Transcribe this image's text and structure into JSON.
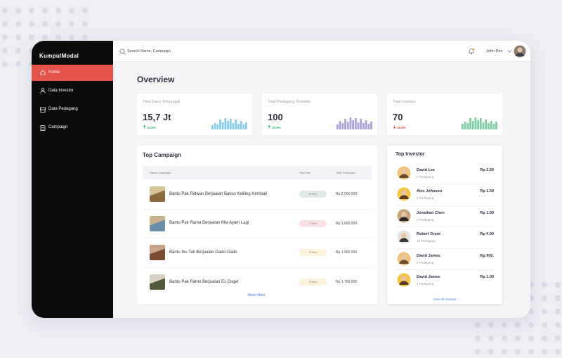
{
  "sidebar": {
    "brand": "KumpulModal",
    "menu": [
      "Home",
      "Data Investor",
      "Data Pedagang",
      "Campaign"
    ],
    "active": 0
  },
  "topbar": {
    "search_placeholder": "Search Name, Campaign",
    "user": "John Doe"
  },
  "overview": {
    "title": "Overview",
    "stats": [
      {
        "label": "Total Dana Terkumpul",
        "value": "15,7 Jt",
        "change": "15.8%",
        "direction": "up",
        "color": "#86ccec",
        "trend": [
          6,
          9,
          7,
          14,
          10,
          16,
          12,
          15,
          9,
          14,
          8,
          12,
          7,
          10
        ]
      },
      {
        "label": "Total Pedagang Terdaftar",
        "value": "100",
        "change": "15.8%",
        "direction": "up",
        "color": "#aaa4da",
        "trend": [
          7,
          12,
          9,
          15,
          11,
          17,
          13,
          16,
          10,
          15,
          9,
          13,
          8,
          11
        ]
      },
      {
        "label": "Total Investor",
        "value": "70",
        "change": "15.8%",
        "direction": "down",
        "color": "#7fcfa6",
        "trend": [
          8,
          11,
          9,
          16,
          12,
          17,
          13,
          16,
          10,
          14,
          9,
          12,
          8,
          11
        ]
      }
    ]
  },
  "top_campaign": {
    "title": "Top Campaign",
    "columns": [
      "Nama Campaign",
      "Sisa Hari",
      "Total Terkumpul"
    ],
    "rows": [
      {
        "name": "Bantu Pak Ridwan Berjualan Bakso Keliling Kembali",
        "days": "6 Hari",
        "badge_color": "#dfe9e6",
        "total": "Rp 2.000.000"
      },
      {
        "name": "Bantu Pak Rama Berjualan Mie Ayam Lagi",
        "days": "2 Hari",
        "badge_color": "#fbe0e4",
        "total": "Rp 1.600.000"
      },
      {
        "name": "Bantu Ibu Tati Berjualan Gado-Gado",
        "days": "5 Hari",
        "badge_color": "#fcf1d9",
        "total": "Rp 1.900.000"
      },
      {
        "name": "Bantu Pak Ratno Berjualan Es Doger",
        "days": "5 Hari",
        "badge_color": "#fcf1d9",
        "total": "Rp 1.700.000"
      }
    ],
    "more": "Show More"
  },
  "top_investor": {
    "title": "Top Investor",
    "rows": [
      {
        "name": "David Lee",
        "count": "5 Pedagang",
        "amount": "Rp 2.50"
      },
      {
        "name": "Alex Johnson",
        "count": "3 Pedagang",
        "amount": "Rp 1.50"
      },
      {
        "name": "Jonathan Chen",
        "count": "2 Pedagang",
        "amount": "Rp 1.00"
      },
      {
        "name": "Robert Grant",
        "count": "10 Pedagang",
        "amount": "Rp 4.00"
      },
      {
        "name": "David James",
        "count": "1 Pedagang",
        "amount": "Rp 900."
      },
      {
        "name": "David James",
        "count": "4 Pedagang",
        "amount": "Rp 1.00"
      }
    ],
    "more": "View All Investor"
  }
}
